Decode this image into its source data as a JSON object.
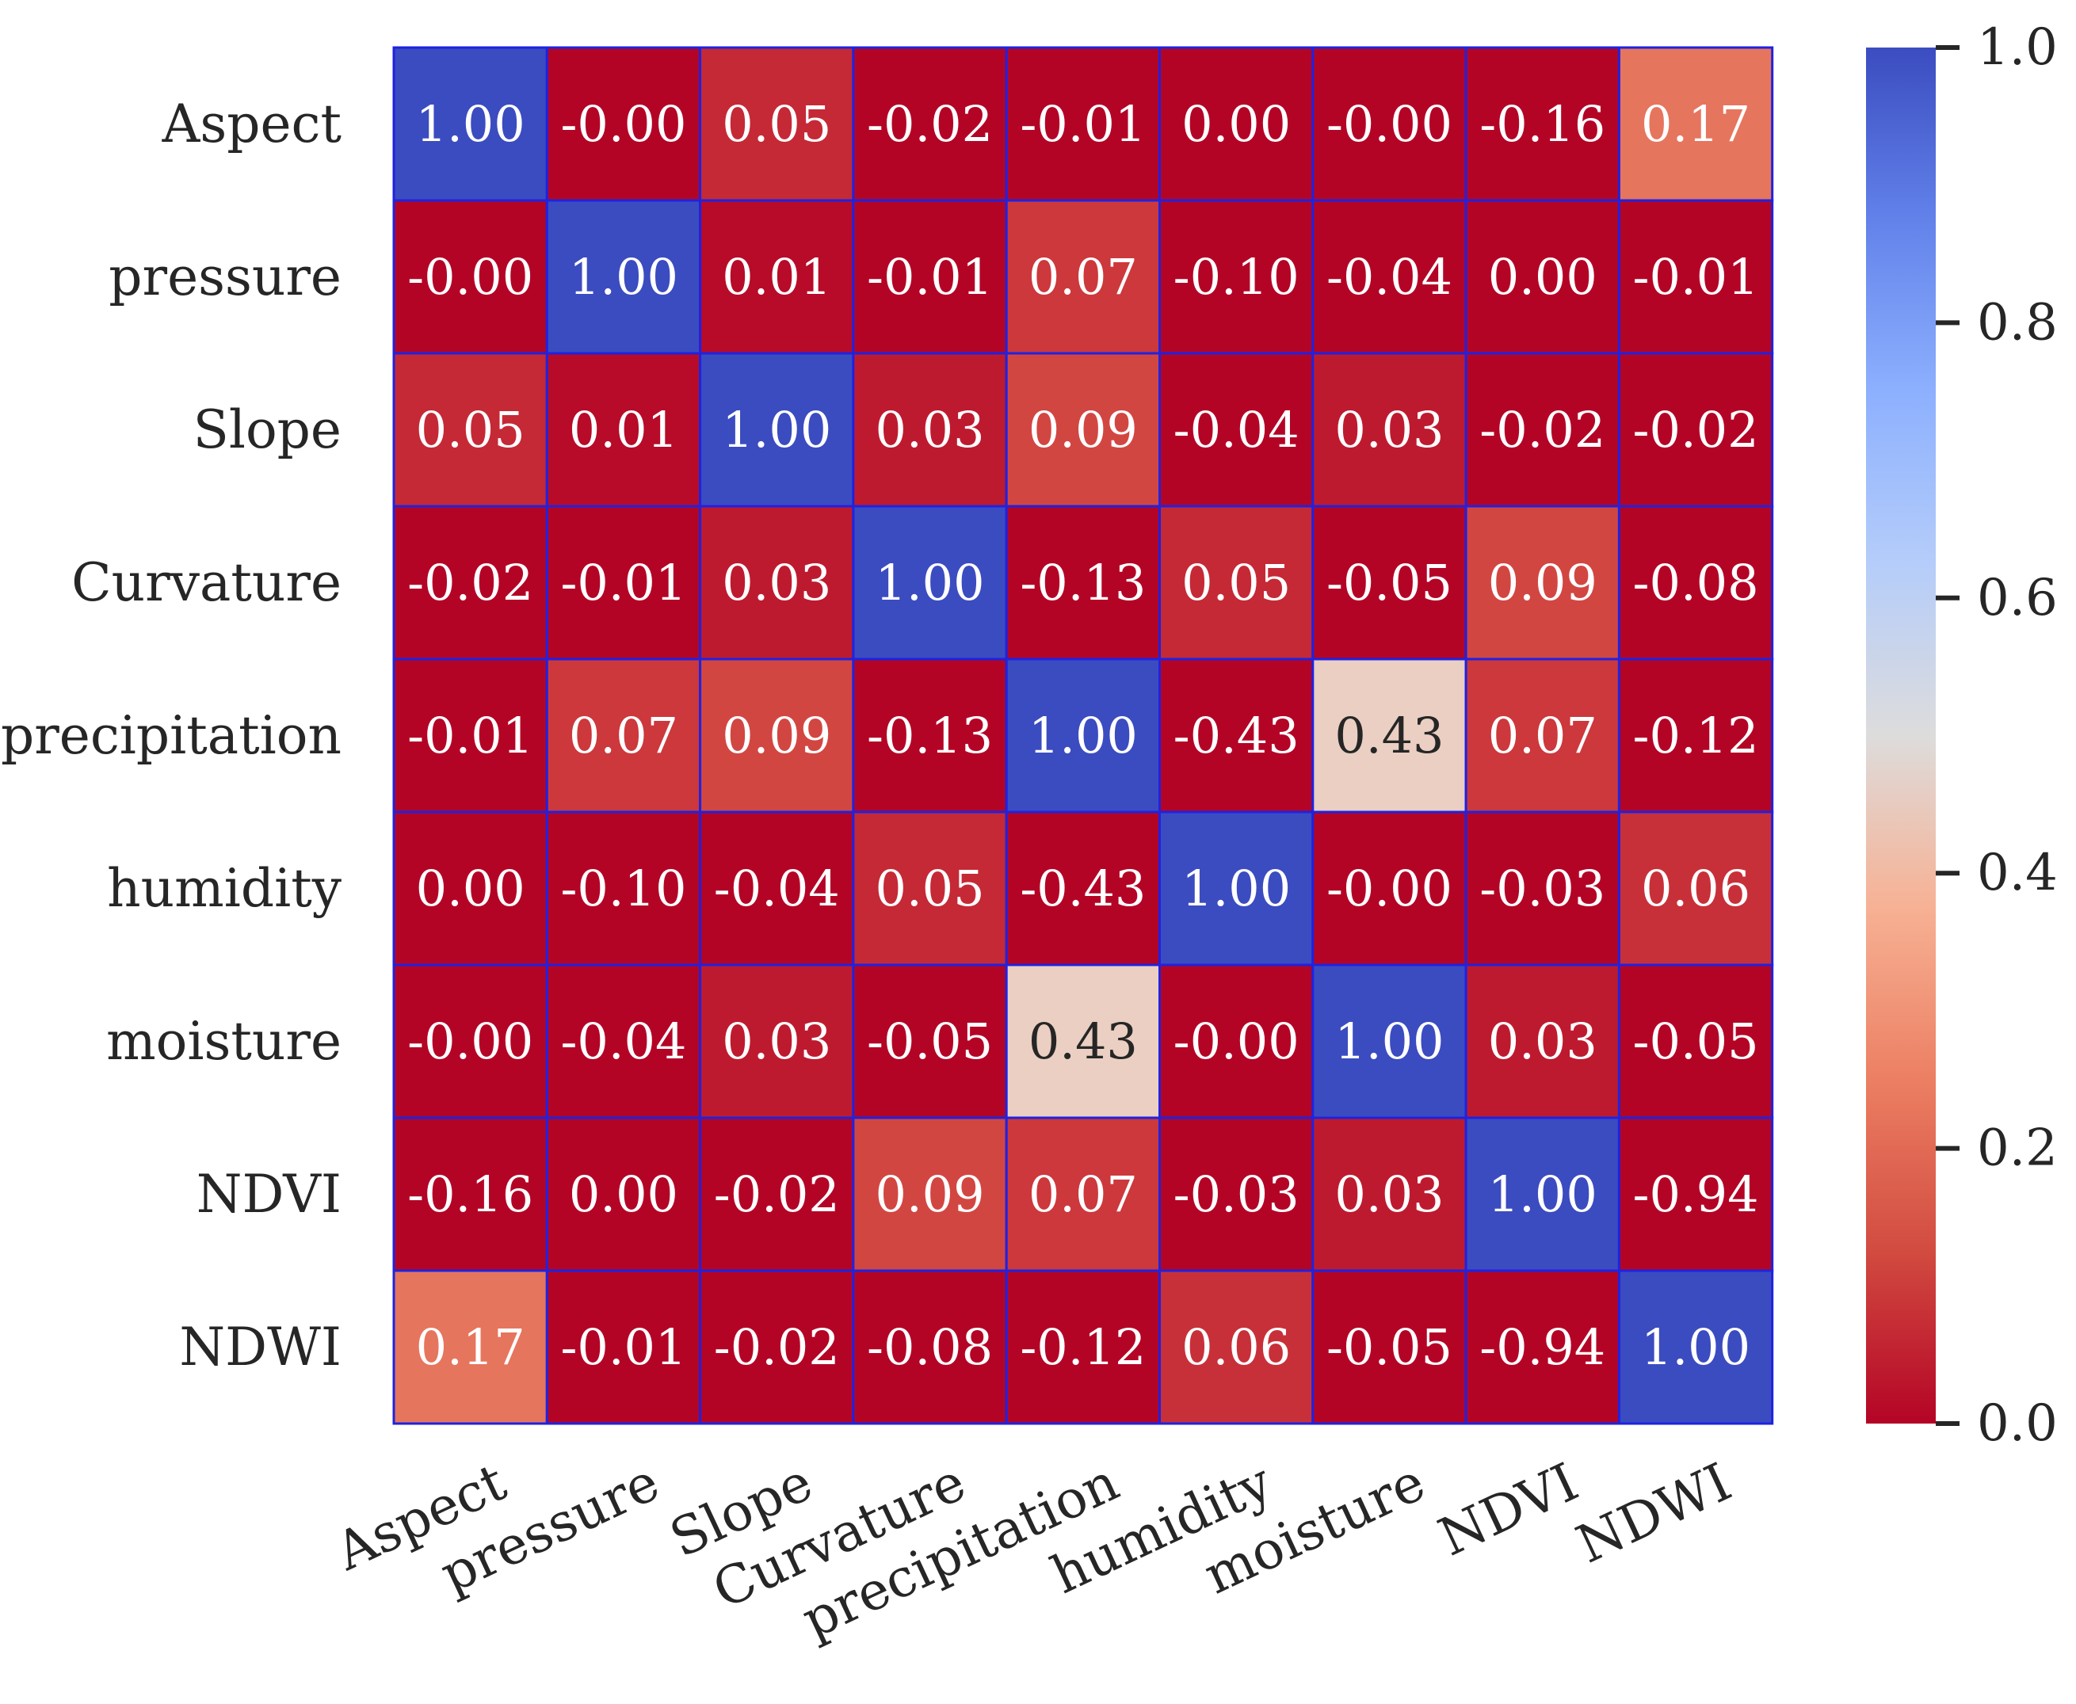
{
  "chart_data": {
    "type": "heatmap",
    "title": "",
    "xlabel": "",
    "ylabel": "",
    "labels": [
      "Aspect",
      "pressure",
      "Slope",
      "Curvature",
      "precipitation",
      "humidity",
      "moisture",
      "NDVI",
      "NDWI"
    ],
    "values": [
      [
        1.0,
        -0.0,
        0.05,
        -0.02,
        -0.01,
        0.0,
        -0.0,
        -0.16,
        0.17
      ],
      [
        -0.0,
        1.0,
        0.01,
        -0.01,
        0.07,
        -0.1,
        -0.04,
        0.0,
        -0.01
      ],
      [
        0.05,
        0.01,
        1.0,
        0.03,
        0.09,
        -0.04,
        0.03,
        -0.02,
        -0.02
      ],
      [
        -0.02,
        -0.01,
        0.03,
        1.0,
        -0.13,
        0.05,
        -0.05,
        0.09,
        -0.08
      ],
      [
        -0.01,
        0.07,
        0.09,
        -0.13,
        1.0,
        -0.43,
        0.43,
        0.07,
        -0.12
      ],
      [
        0.0,
        -0.1,
        -0.04,
        0.05,
        -0.43,
        1.0,
        -0.0,
        -0.03,
        0.06
      ],
      [
        -0.0,
        -0.04,
        0.03,
        -0.05,
        0.43,
        -0.0,
        1.0,
        0.03,
        -0.05
      ],
      [
        -0.16,
        0.0,
        -0.02,
        0.09,
        0.07,
        -0.03,
        0.03,
        1.0,
        -0.94
      ],
      [
        0.17,
        -0.01,
        -0.02,
        -0.08,
        -0.12,
        0.06,
        -0.05,
        -0.94,
        1.0
      ]
    ],
    "annotation_format": "0.00",
    "colormap": "coolwarm_r",
    "color_range": [
      0.0,
      1.0
    ],
    "colorbar": {
      "ticks": [
        0.0,
        0.2,
        0.4,
        0.6,
        0.8,
        1.0
      ],
      "tick_labels": [
        "0.0",
        "0.2",
        "0.4",
        "0.6",
        "0.8",
        "1.0"
      ],
      "position": "right"
    },
    "cell_border_color": "#1f22e0",
    "text_color_light": "#ffffff",
    "text_color_dark": "#262626"
  }
}
